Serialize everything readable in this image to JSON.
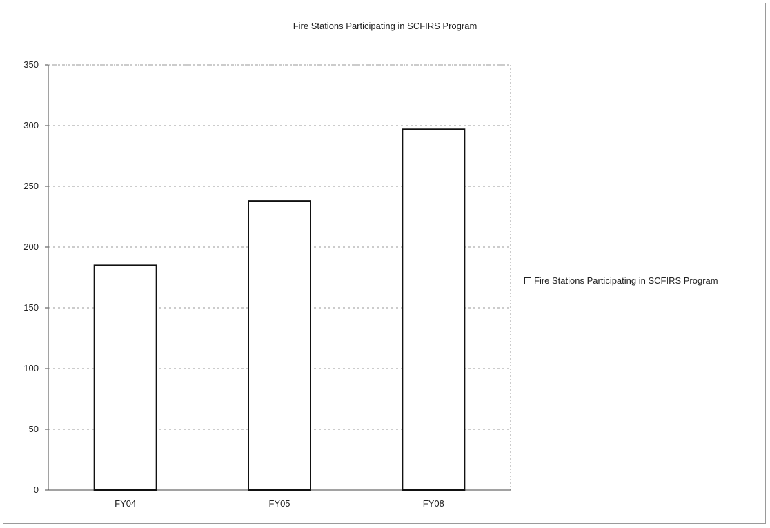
{
  "chart_data": {
    "type": "bar",
    "title": "Fire Stations Participating in SCFIRS Program",
    "xlabel": "",
    "ylabel": "",
    "categories": [
      "FY04",
      "FY05",
      "FY08"
    ],
    "series": [
      {
        "name": "Fire Stations Participating in SCFIRS Program",
        "values": [
          185,
          238,
          297
        ]
      }
    ],
    "ylim": [
      0,
      350
    ],
    "yticks": [
      "0",
      "50",
      "100",
      "150",
      "200",
      "250",
      "300",
      "350"
    ],
    "grid": true,
    "legend": "right",
    "colors": {
      "bar_fill": "#ffffff",
      "bar_stroke": "#111111",
      "grid": "#9a9a9a"
    }
  }
}
